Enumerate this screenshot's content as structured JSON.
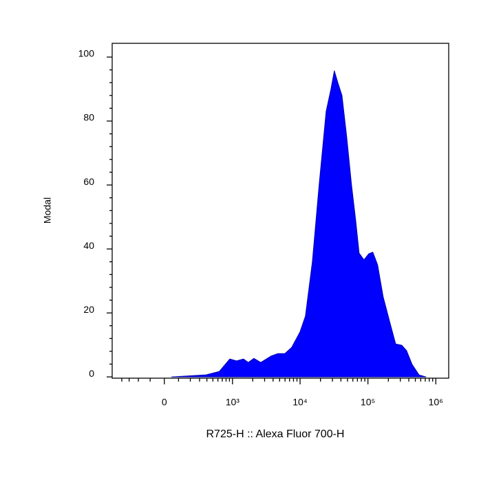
{
  "chart_data": {
    "type": "area",
    "ylabel": "Modal",
    "xlabel": "R725-H :: Alexa Fluor 700-H",
    "xscale": "biexponential",
    "color": "#0000ff",
    "x": [
      50,
      380,
      630,
      910,
      1150,
      1460,
      1720,
      2080,
      2630,
      3730,
      4710,
      5960,
      7520,
      9950,
      12000,
      15200,
      19100,
      24200,
      28500,
      32000,
      36000,
      41400,
      48700,
      57400,
      65900,
      74200,
      87300,
      103000,
      118000,
      139000,
      168000,
      212000,
      256000,
      315000,
      371000,
      448000,
      566000,
      715000
    ],
    "values": [
      0,
      0.6,
      1.7,
      5.6,
      5,
      5.6,
      4.5,
      5.8,
      4.5,
      6.5,
      7.3,
      7.3,
      9.2,
      14,
      19,
      36,
      60,
      83,
      90,
      95.7,
      92,
      88,
      75,
      60,
      49,
      38.7,
      36.6,
      38.5,
      39,
      35,
      25,
      16.8,
      10.3,
      9.9,
      8.2,
      3.9,
      0.6,
      0
    ],
    "xlim": [
      -570,
      1550000
    ],
    "xticks": [
      0,
      {
        "value": 1000,
        "label": "10³"
      },
      {
        "value": 10000,
        "label": "10⁴"
      },
      {
        "value": 100000,
        "label": "10⁵"
      },
      {
        "value": 1000000,
        "label": "10⁶"
      }
    ],
    "xminorticks": [
      -400,
      -300,
      -200,
      -100,
      100,
      200,
      300,
      400,
      500,
      600,
      700,
      800,
      900,
      2000,
      3000,
      4000,
      5000,
      6000,
      7000,
      8000,
      9000,
      20000,
      30000,
      40000,
      50000,
      60000,
      70000,
      80000,
      90000,
      200000,
      300000,
      400000,
      500000,
      600000,
      700000,
      800000,
      900000
    ],
    "ylim": [
      -0.4,
      104.3
    ],
    "yticks": [
      0,
      20,
      40,
      60,
      80,
      100
    ],
    "yminorticks": [
      4,
      8,
      12,
      16,
      24,
      28,
      32,
      36,
      44,
      48,
      52,
      56,
      64,
      68,
      72,
      76,
      84,
      88,
      92,
      96
    ]
  }
}
